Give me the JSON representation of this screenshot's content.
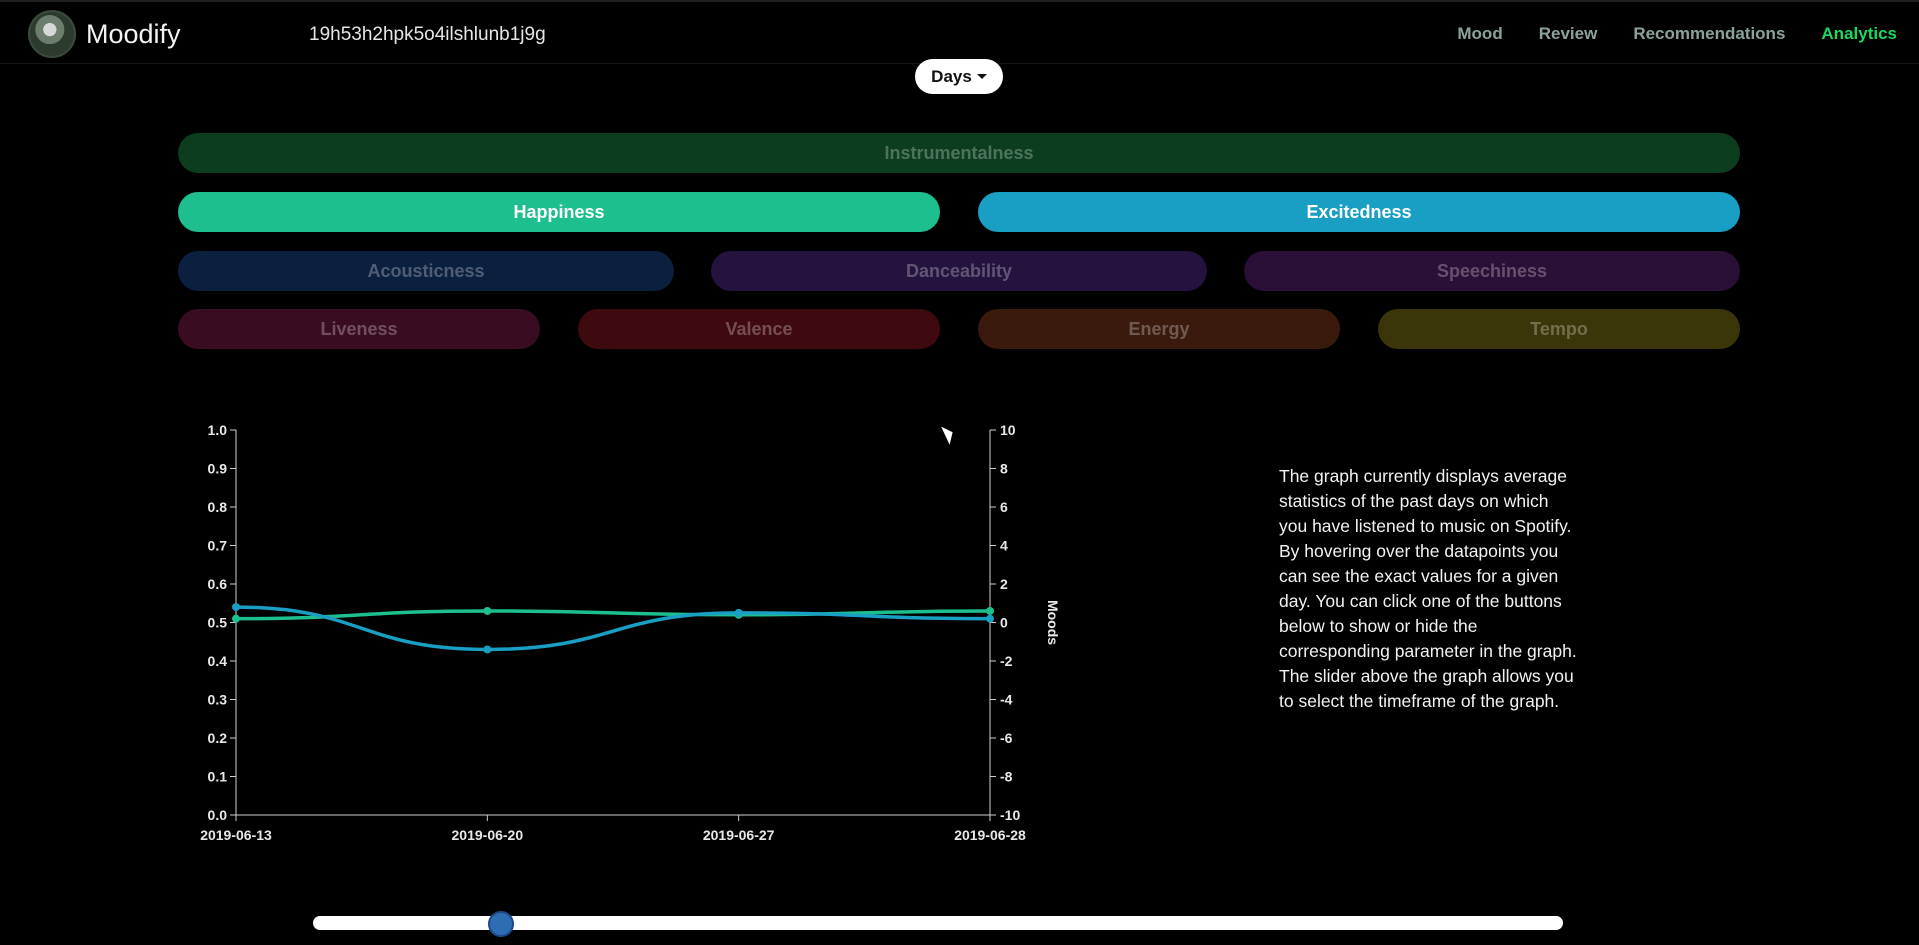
{
  "navbar": {
    "brand": "Moodify",
    "user_id": "19h53h2hpk5o4ilshlunb1j9g",
    "links": [
      {
        "label": "Mood",
        "active": false
      },
      {
        "label": "Review",
        "active": false
      },
      {
        "label": "Recommendations",
        "active": false
      },
      {
        "label": "Analytics",
        "active": true
      }
    ]
  },
  "timeframe": {
    "selected": "Days"
  },
  "toggles": {
    "instrumentalness": {
      "label": "Instrumentalness",
      "active": false,
      "color": "#0b3d1e"
    },
    "happiness": {
      "label": "Happiness",
      "active": true,
      "color": "#1dbf8e"
    },
    "excitedness": {
      "label": "Excitedness",
      "active": true,
      "color": "#1a9fc4"
    },
    "acousticness": {
      "label": "Acousticness",
      "active": false,
      "color": "#0b1f3f"
    },
    "danceability": {
      "label": "Danceability",
      "active": false,
      "color": "#24123f"
    },
    "speechiness": {
      "label": "Speechiness",
      "active": false,
      "color": "#2a0f36"
    },
    "liveness": {
      "label": "Liveness",
      "active": false,
      "color": "#3a0c22"
    },
    "valence": {
      "label": "Valence",
      "active": false,
      "color": "#3f0a0f"
    },
    "energy": {
      "label": "Energy",
      "active": false,
      "color": "#3a1a0c"
    },
    "tempo": {
      "label": "Tempo",
      "active": false,
      "color": "#3a3609"
    }
  },
  "chart_data": {
    "type": "line",
    "x": [
      "2019-06-13",
      "2019-06-20",
      "2019-06-27",
      "2019-06-28"
    ],
    "y_left": {
      "range": [
        0,
        1
      ],
      "ticks": [
        "0.0",
        "0.1",
        "0.2",
        "0.3",
        "0.4",
        "0.5",
        "0.6",
        "0.7",
        "0.8",
        "0.9",
        "1.0"
      ]
    },
    "y_right": {
      "label": "Moods",
      "range": [
        -10,
        10
      ],
      "ticks": [
        "10",
        "8",
        "6",
        "4",
        "2",
        "0",
        "-2",
        "-4",
        "-6",
        "-8",
        "-10"
      ]
    },
    "series": [
      {
        "values": [
          0.51,
          0.53,
          0.52,
          0.53
        ],
        "color": "#1dbf8e"
      },
      {
        "values": [
          0.54,
          0.43,
          0.525,
          0.51
        ],
        "color": "#1a9fc4"
      }
    ]
  },
  "description": "The graph currently displays average statistics of the past days on which you have listened to music on Spotify. By hovering over the datapoints you can see the exact values for a given day. You can click one of the buttons below to show or hide the corresponding parameter in the graph. The slider above the graph allows you to select the timeframe of the graph.",
  "slider": {
    "value_fraction": 0.15
  }
}
